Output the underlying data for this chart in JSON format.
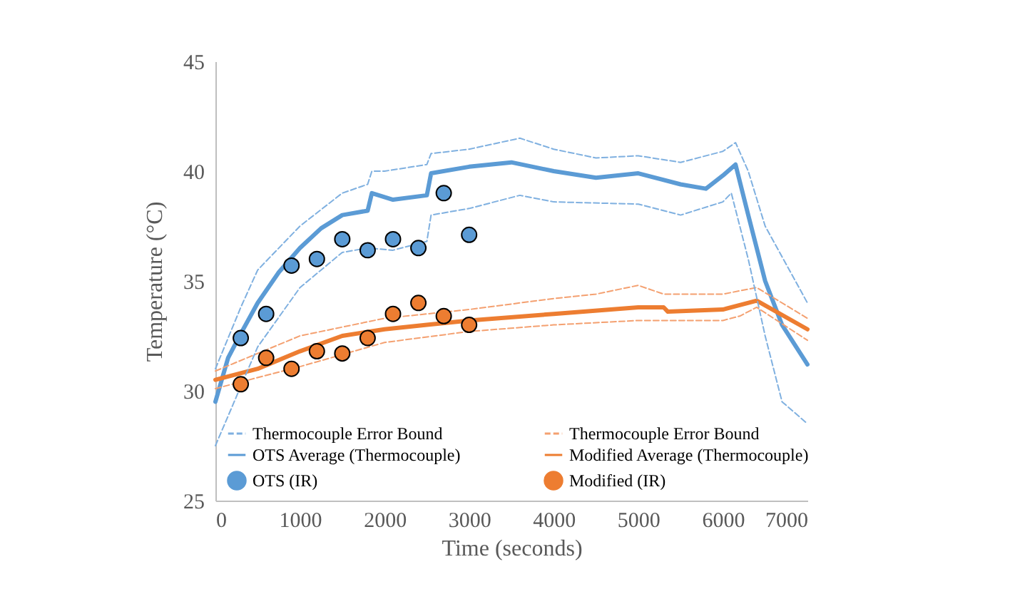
{
  "chart_data": {
    "type": "line",
    "xlabel": "Time (seconds)",
    "ylabel": "Temperature (°C)",
    "xlim": [
      0,
      7000
    ],
    "xticks": [
      0,
      {
        "value": 1000,
        "label": "1000"
      },
      {
        "value": 2000,
        "label": "2000"
      },
      {
        "value": 3000,
        "label": "3000"
      },
      {
        "value": 4000,
        "label": "4000"
      },
      {
        "value": 5000,
        "label": "5000"
      },
      {
        "value": 6000,
        "label": "6000"
      },
      {
        "value": 7000,
        "label": "7000"
      }
    ],
    "ylim": [
      25,
      45
    ],
    "yticks": [
      25,
      30,
      35,
      40,
      45
    ],
    "grid": false,
    "legend": "bottom left",
    "series": [
      {
        "name": "Thermocouple  Error Bound",
        "line_style": "dashed",
        "color": "#7fb0e0",
        "x": [
          0,
          300,
          500,
          1000,
          1500,
          1800,
          1850,
          2000,
          2500,
          2550,
          3000,
          3600,
          4000,
          4500,
          5000,
          5500,
          6000,
          6150,
          6300,
          6500,
          7000
        ],
        "values": [
          31,
          33.8,
          35.5,
          37.5,
          39,
          39.4,
          40,
          40,
          40.3,
          40.8,
          41,
          41.5,
          41,
          40.6,
          40.7,
          40.4,
          40.9,
          41.3,
          40,
          37.5,
          34
        ]
      },
      {
        "name": "OTS Average  (Thermocouple)",
        "line_style": "solid",
        "color": "#5b9bd5",
        "x": [
          0,
          150,
          300,
          500,
          750,
          1000,
          1250,
          1500,
          1800,
          1850,
          2100,
          2500,
          2550,
          3000,
          3500,
          4000,
          4500,
          5000,
          5500,
          5800,
          6000,
          6150,
          6300,
          6500,
          6700,
          7000
        ],
        "values": [
          29.5,
          31.5,
          32.6,
          34,
          35.4,
          36.5,
          37.4,
          38,
          38.2,
          39,
          38.7,
          38.9,
          39.9,
          40.2,
          40.4,
          40,
          39.7,
          39.9,
          39.4,
          39.2,
          39.8,
          40.3,
          38,
          35,
          33,
          31.2
        ]
      },
      {
        "name": "OTS (IR)",
        "type": "scatter",
        "marker": "circle",
        "color": "#5b9bd5",
        "x": [
          300,
          600,
          900,
          1200,
          1500,
          1800,
          2100,
          2400,
          2700,
          3000
        ],
        "values": [
          32.4,
          33.5,
          35.7,
          36.0,
          36.9,
          36.4,
          36.9,
          36.5,
          39.0,
          37.1
        ]
      },
      {
        "name": "Thermocouple  Error Bound",
        "line_style": "dashed",
        "color": "#f4a070",
        "x": [
          0,
          1000,
          2000,
          3000,
          4000,
          4500,
          5000,
          5300,
          6000,
          6400,
          7000
        ],
        "values": [
          30.9,
          32.5,
          33.3,
          33.7,
          34.2,
          34.4,
          34.8,
          34.4,
          34.4,
          34.7,
          33.3
        ]
      },
      {
        "name": "Modified  Average  (Thermocouple)",
        "line_style": "solid",
        "color": "#ed7d31",
        "x": [
          0,
          500,
          1000,
          1500,
          2000,
          2500,
          3000,
          4000,
          5000,
          5300,
          5350,
          6000,
          6400,
          7000
        ],
        "values": [
          30.5,
          31,
          31.8,
          32.5,
          32.8,
          33,
          33.2,
          33.5,
          33.8,
          33.8,
          33.6,
          33.7,
          34.1,
          32.8
        ]
      },
      {
        "name": "Modified  (IR)",
        "type": "scatter",
        "marker": "circle",
        "color": "#ed7d31",
        "x": [
          300,
          600,
          900,
          1200,
          1500,
          1800,
          2100,
          2400,
          2700,
          3000
        ],
        "values": [
          30.3,
          31.5,
          31.0,
          31.8,
          31.7,
          32.4,
          33.5,
          34.0,
          33.4,
          33.0
        ]
      },
      {
        "line_style": "dashed",
        "color": "#7fb0e0",
        "x": [
          0,
          300,
          500,
          1000,
          1500,
          1800,
          2100,
          2500,
          2550,
          3000,
          3600,
          4000,
          5000,
          5500,
          6000,
          6100,
          6300,
          6500,
          6700,
          7000
        ],
        "values": [
          27.5,
          30.2,
          32,
          34.7,
          36.3,
          36.5,
          36.4,
          36.8,
          38,
          38.3,
          38.9,
          38.6,
          38.5,
          38.0,
          38.6,
          39,
          36,
          32.5,
          29.5,
          28.5
        ]
      },
      {
        "line_style": "dashed",
        "color": "#f4a070",
        "x": [
          0,
          1000,
          2000,
          3000,
          4000,
          5000,
          6000,
          6200,
          6400,
          7000
        ],
        "values": [
          30.1,
          31.1,
          32.2,
          32.7,
          33,
          33.2,
          33.2,
          33.4,
          33.8,
          32.3
        ]
      }
    ]
  }
}
